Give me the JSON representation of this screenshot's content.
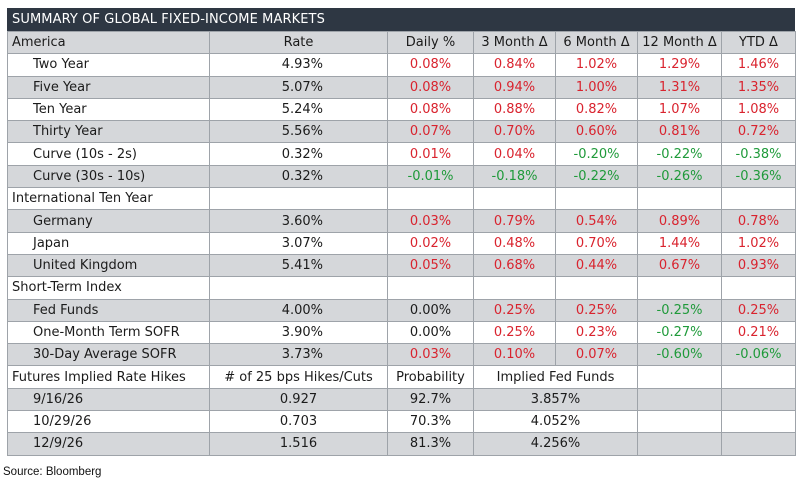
{
  "title": "SUMMARY OF GLOBAL FIXED-INCOME MARKETS",
  "header": [
    "America",
    "Rate",
    "Daily %",
    "3 Month Δ",
    "6 Month Δ",
    "12 Month Δ",
    "YTD Δ"
  ],
  "america": [
    {
      "label": "Two Year",
      "rate": "4.93%",
      "daily": "0.08%",
      "m3": "0.84%",
      "m6": "1.02%",
      "m12": "1.29%",
      "ytd": "1.46%"
    },
    {
      "label": "Five Year",
      "rate": "5.07%",
      "daily": "0.08%",
      "m3": "0.94%",
      "m6": "1.00%",
      "m12": "1.31%",
      "ytd": "1.35%"
    },
    {
      "label": "Ten Year",
      "rate": "5.24%",
      "daily": "0.08%",
      "m3": "0.88%",
      "m6": "0.82%",
      "m12": "1.07%",
      "ytd": "1.08%"
    },
    {
      "label": "Thirty Year",
      "rate": "5.56%",
      "daily": "0.07%",
      "m3": "0.70%",
      "m6": "0.60%",
      "m12": "0.81%",
      "ytd": "0.72%"
    },
    {
      "label": "Curve (10s - 2s)",
      "rate": "0.32%",
      "daily": "0.01%",
      "m3": "0.04%",
      "m6": "-0.20%",
      "m12": "-0.22%",
      "ytd": "-0.38%"
    },
    {
      "label": "Curve (30s - 10s)",
      "rate": "0.32%",
      "daily": "-0.01%",
      "m3": "-0.18%",
      "m6": "-0.22%",
      "m12": "-0.26%",
      "ytd": "-0.36%"
    }
  ],
  "international_header": "International Ten Year",
  "international": [
    {
      "label": "Germany",
      "rate": "3.60%",
      "daily": "0.03%",
      "m3": "0.79%",
      "m6": "0.54%",
      "m12": "0.89%",
      "ytd": "0.78%"
    },
    {
      "label": "Japan",
      "rate": "3.07%",
      "daily": "0.02%",
      "m3": "0.48%",
      "m6": "0.70%",
      "m12": "1.44%",
      "ytd": "1.02%"
    },
    {
      "label": "United Kingdom",
      "rate": "5.41%",
      "daily": "0.05%",
      "m3": "0.68%",
      "m6": "0.44%",
      "m12": "0.67%",
      "ytd": "0.93%"
    }
  ],
  "short_term_header": "Short-Term Index",
  "short_term": [
    {
      "label": "Fed Funds",
      "rate": "4.00%",
      "daily": "0.00%",
      "m3": "0.25%",
      "m6": "0.25%",
      "m12": "-0.25%",
      "ytd": "0.25%"
    },
    {
      "label": "One-Month Term SOFR",
      "rate": "3.90%",
      "daily": "0.00%",
      "m3": "0.25%",
      "m6": "0.23%",
      "m12": "-0.27%",
      "ytd": "0.21%"
    },
    {
      "label": "30-Day Average SOFR",
      "rate": "3.73%",
      "daily": "0.03%",
      "m3": "0.10%",
      "m6": "0.07%",
      "m12": "-0.60%",
      "ytd": "-0.06%"
    }
  ],
  "futures_header": [
    "Futures Implied Rate Hikes",
    "# of 25 bps Hikes/Cuts",
    "Probability",
    "Implied Fed Funds"
  ],
  "futures": [
    {
      "date": "9/16/26",
      "hikes": "0.927",
      "prob": "92.7%",
      "implied": "3.857%"
    },
    {
      "date": "10/29/26",
      "hikes": "0.703",
      "prob": "70.3%",
      "implied": "4.052%"
    },
    {
      "date": "12/9/26",
      "hikes": "1.516",
      "prob": "81.3%",
      "implied": "4.256%"
    }
  ],
  "source": "Source: Bloomberg",
  "colors": {
    "positive": "#d9232e",
    "negative": "#1f9a3a",
    "title_bg": "#2e3743",
    "shade": "#d5d7da"
  }
}
